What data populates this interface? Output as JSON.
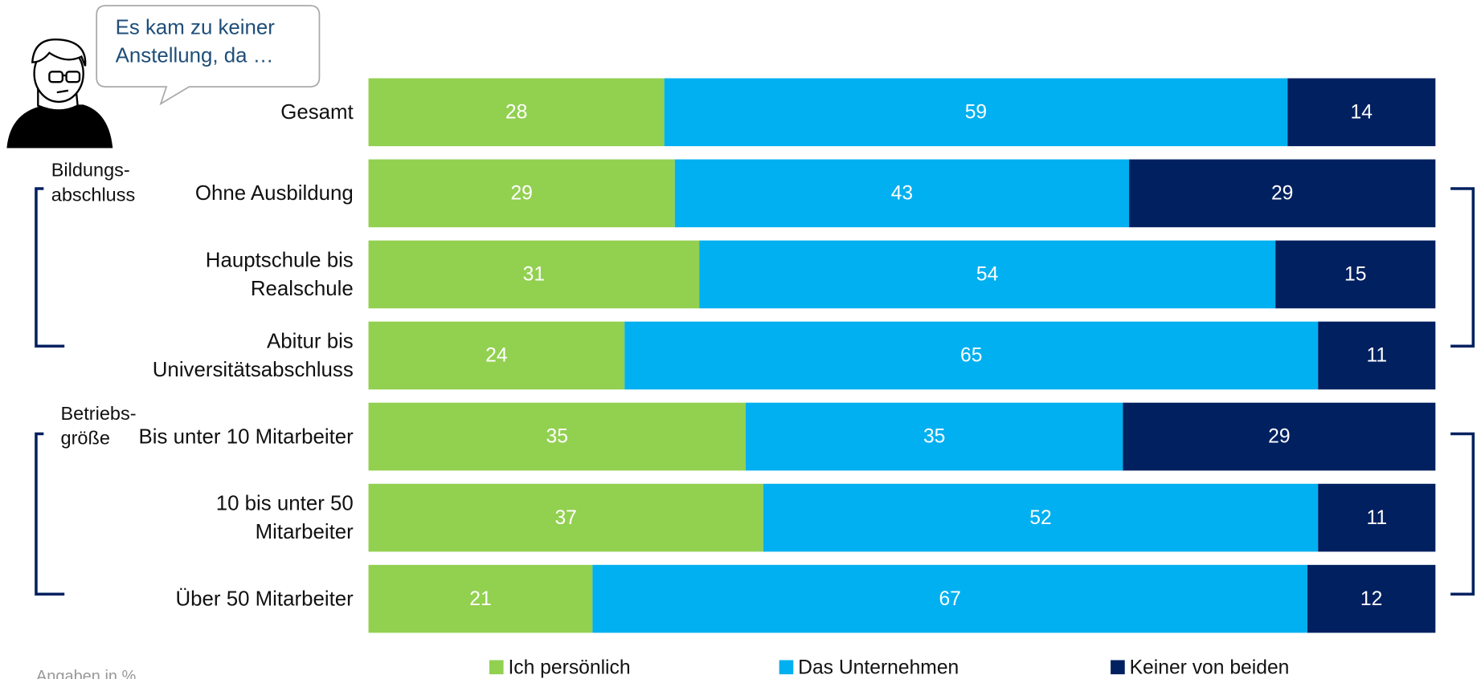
{
  "chart_data": {
    "type": "bar",
    "orientation": "horizontal",
    "stacked": "percent",
    "speech_bubble": "Es kam zu keiner Anstellung, da …",
    "groups": [
      "Bildungs-abschluss",
      "Betriebs-größe"
    ],
    "categories": [
      "Gesamt",
      "Ohne Ausbildung",
      "Hauptschule bis Realschule",
      "Abitur bis Universitätsabschluss",
      "Bis unter 10 Mitarbeiter",
      "10 bis unter 50 Mitarbeiter",
      "Über 50 Mitarbeiter"
    ],
    "series": [
      {
        "name": "Ich persönlich",
        "color": "#92d050",
        "values": [
          28,
          29,
          31,
          24,
          35,
          37,
          21
        ]
      },
      {
        "name": "Das Unternehmen",
        "color": "#00b0f0",
        "values": [
          59,
          43,
          54,
          65,
          35,
          52,
          67
        ]
      },
      {
        "name": "Keiner von beiden",
        "color": "#002060",
        "values": [
          14,
          29,
          15,
          11,
          29,
          11,
          12
        ]
      }
    ],
    "note": "Angaben in %"
  }
}
